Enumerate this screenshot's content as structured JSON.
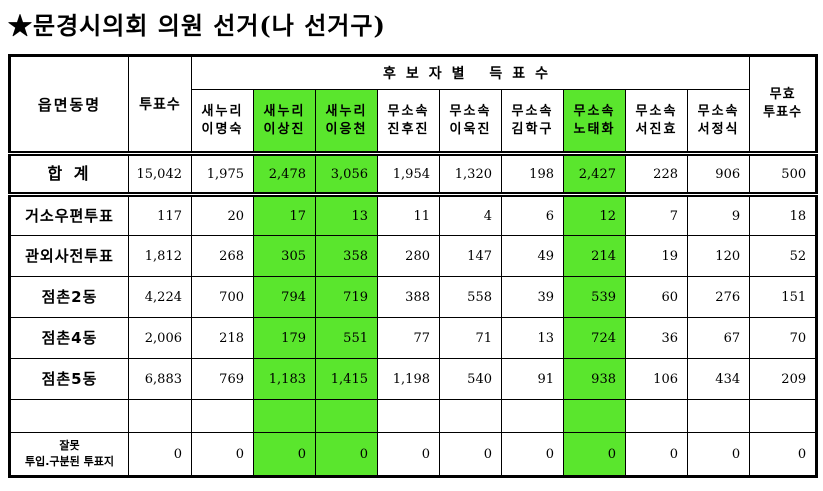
{
  "title": "★문경시의회 의원 선거(나 선거구)",
  "table": {
    "highlight_color": "#5AE62D",
    "header": {
      "region_col": "읍면동명",
      "votes_col": "투표수",
      "candidates_group": "후보자별 득표수",
      "invalid_col": "무효\n투표수",
      "candidates": [
        {
          "label": "새누리\n이명숙",
          "highlight": false
        },
        {
          "label": "새누리\n이상진",
          "highlight": true
        },
        {
          "label": "새누리\n이응천",
          "highlight": true
        },
        {
          "label": "무소속\n진후진",
          "highlight": false
        },
        {
          "label": "무소속\n이욱진",
          "highlight": false
        },
        {
          "label": "무소속\n김학구",
          "highlight": false
        },
        {
          "label": "무소속\n노태화",
          "highlight": true
        },
        {
          "label": "무소속\n서진효",
          "highlight": false
        },
        {
          "label": "무소속\n서정식",
          "highlight": false
        }
      ]
    },
    "rows": [
      {
        "label": "합 계",
        "type": "total",
        "cells": [
          "15,042",
          "1,975",
          "2,478",
          "3,056",
          "1,954",
          "1,320",
          "198",
          "2,427",
          "228",
          "906",
          "500"
        ]
      },
      {
        "label": "거소우편투표",
        "type": "normal",
        "cells": [
          "117",
          "20",
          "17",
          "13",
          "11",
          "4",
          "6",
          "12",
          "7",
          "9",
          "18"
        ]
      },
      {
        "label": "관외사전투표",
        "type": "normal",
        "cells": [
          "1,812",
          "268",
          "305",
          "358",
          "280",
          "147",
          "49",
          "214",
          "19",
          "120",
          "52"
        ]
      },
      {
        "label": "점촌2동",
        "type": "normal",
        "cells": [
          "4,224",
          "700",
          "794",
          "719",
          "388",
          "558",
          "39",
          "539",
          "60",
          "276",
          "151"
        ]
      },
      {
        "label": "점촌4동",
        "type": "normal",
        "cells": [
          "2,006",
          "218",
          "179",
          "551",
          "77",
          "71",
          "13",
          "724",
          "36",
          "67",
          "70"
        ]
      },
      {
        "label": "점촌5동",
        "type": "normal",
        "cells": [
          "6,883",
          "769",
          "1,183",
          "1,415",
          "1,198",
          "540",
          "91",
          "938",
          "106",
          "434",
          "209"
        ]
      },
      {
        "label": "",
        "type": "empty",
        "cells": [
          "",
          "",
          "",
          "",
          "",
          "",
          "",
          "",
          "",
          "",
          ""
        ]
      },
      {
        "label": "잘못\n투입.구분된 투표지",
        "type": "footer",
        "cells": [
          "0",
          "0",
          "0",
          "0",
          "0",
          "0",
          "0",
          "0",
          "0",
          "0",
          "0"
        ]
      }
    ]
  }
}
